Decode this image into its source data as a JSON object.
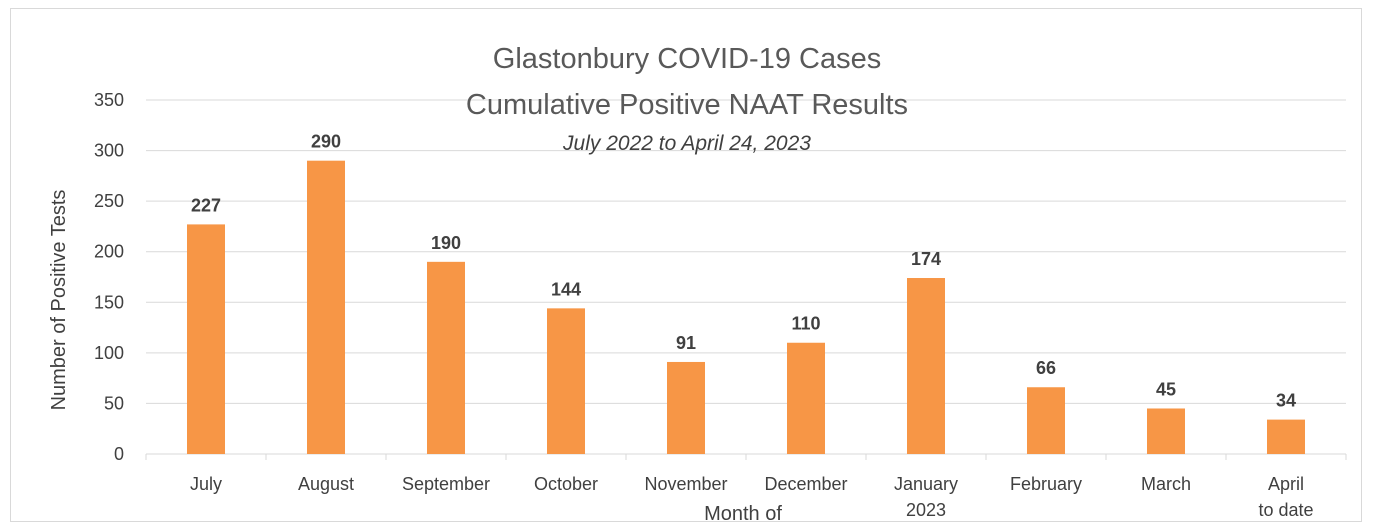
{
  "chart_data": {
    "type": "bar",
    "title": "Glastonbury COVID-19 Cases",
    "title_line2": "Cumulative Positive NAAT Results",
    "subtitle": "July 2022 to April 24, 2023",
    "xlabel": "Month of",
    "ylabel": "Number of Positive Tests",
    "categories": [
      [
        "July"
      ],
      [
        "August"
      ],
      [
        "September"
      ],
      [
        "October"
      ],
      [
        "November"
      ],
      [
        "December"
      ],
      [
        "January",
        "2023"
      ],
      [
        "February"
      ],
      [
        "March"
      ],
      [
        "April",
        "to date"
      ]
    ],
    "values": [
      227,
      290,
      190,
      144,
      91,
      110,
      174,
      66,
      45,
      34
    ],
    "ylim": [
      0,
      350
    ],
    "yticks": [
      0,
      50,
      100,
      150,
      200,
      250,
      300,
      350
    ],
    "grid": true,
    "legend": "none",
    "colors": {
      "bar": "#F79646",
      "grid": "#d9d9d9",
      "text": "#404040"
    }
  }
}
